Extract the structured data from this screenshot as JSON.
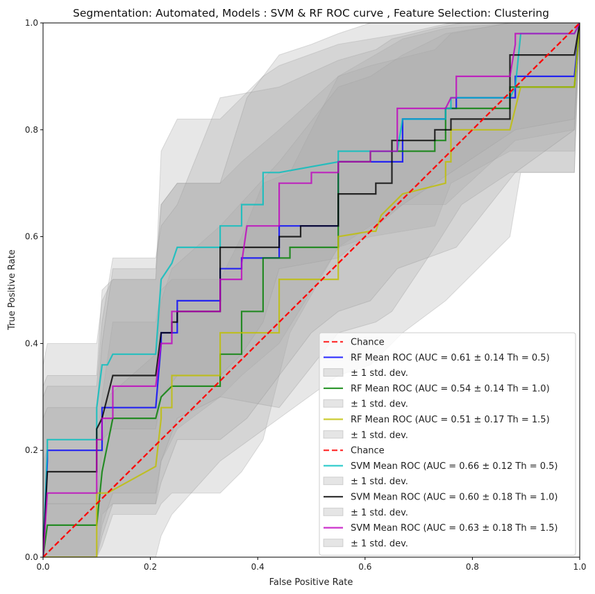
{
  "chart_data": {
    "type": "line",
    "title": "Segmentation: Automated, Models : SVM & RF ROC curve , Feature Selection: Clustering",
    "xlabel": "False Positive Rate",
    "ylabel": "True Positive Rate",
    "xlim": [
      0,
      1
    ],
    "ylim": [
      0,
      1
    ],
    "xticks": [
      "0.0",
      "0.2",
      "0.4",
      "0.6",
      "0.8",
      "1.0"
    ],
    "yticks": [
      "0.0",
      "0.2",
      "0.4",
      "0.6",
      "0.8",
      "1.0"
    ],
    "grid": false,
    "legend_position": "bottom-right",
    "chance_color": "#ff0000",
    "band_color": "#a9a9a9",
    "series": [
      {
        "name": "RF Mean ROC (AUC = 0.61 ± 0.14 Th = 0.5)",
        "color": "#0000ff",
        "x": [
          0,
          0.008,
          0.008,
          0.1,
          0.11,
          0.11,
          0.21,
          0.22,
          0.22,
          0.25,
          0.25,
          0.33,
          0.33,
          0.37,
          0.37,
          0.44,
          0.44,
          0.55,
          0.55,
          0.56,
          0.56,
          0.67,
          0.67,
          0.75,
          0.75,
          0.77,
          0.77,
          0.88,
          0.88,
          0.89,
          0.89,
          0.99,
          1.0
        ],
        "y": [
          0,
          0.18,
          0.2,
          0.2,
          0.2,
          0.28,
          0.28,
          0.4,
          0.42,
          0.42,
          0.48,
          0.48,
          0.54,
          0.54,
          0.56,
          0.56,
          0.62,
          0.62,
          0.74,
          0.74,
          0.74,
          0.74,
          0.82,
          0.82,
          0.84,
          0.84,
          0.86,
          0.86,
          0.9,
          0.9,
          0.9,
          0.9,
          1.0
        ],
        "band_upper": [
          0.4,
          0.5,
          0.5,
          0.55,
          0.62,
          0.68,
          0.76,
          0.8,
          0.86,
          0.9,
          0.96,
          0.98,
          1.0
        ],
        "band_lower": [
          0.0,
          0.0,
          0.0,
          0.05,
          0.1,
          0.22,
          0.3,
          0.35,
          0.45,
          0.55,
          0.65,
          0.75,
          0.8
        ]
      },
      {
        "name": "RF Mean ROC (AUC = 0.54 ± 0.14 Th = 1.0)",
        "color": "#008000",
        "x": [
          0,
          0.008,
          0.008,
          0.1,
          0.11,
          0.11,
          0.13,
          0.13,
          0.21,
          0.22,
          0.22,
          0.24,
          0.24,
          0.33,
          0.33,
          0.37,
          0.37,
          0.41,
          0.41,
          0.46,
          0.46,
          0.5,
          0.5,
          0.55,
          0.55,
          0.61,
          0.61,
          0.73,
          0.73,
          0.75,
          0.75,
          0.76,
          0.76,
          0.87,
          0.87,
          0.89,
          0.89,
          0.99,
          1.0
        ],
        "y": [
          0,
          0.06,
          0.06,
          0.06,
          0.16,
          0.16,
          0.26,
          0.26,
          0.26,
          0.3,
          0.3,
          0.32,
          0.32,
          0.32,
          0.38,
          0.38,
          0.46,
          0.46,
          0.56,
          0.56,
          0.58,
          0.58,
          0.58,
          0.58,
          0.74,
          0.74,
          0.76,
          0.76,
          0.78,
          0.78,
          0.84,
          0.84,
          0.84,
          0.84,
          0.88,
          0.88,
          0.88,
          0.88,
          1.0
        ]
      },
      {
        "name": "RF Mean ROC (AUC = 0.51 ± 0.17 Th = 1.5)",
        "color": "#bfbf00",
        "x": [
          0,
          0.008,
          0.008,
          0.1,
          0.1,
          0.12,
          0.21,
          0.22,
          0.22,
          0.24,
          0.24,
          0.33,
          0.33,
          0.44,
          0.44,
          0.55,
          0.55,
          0.61,
          0.62,
          0.63,
          0.63,
          0.66,
          0.67,
          0.75,
          0.75,
          0.76,
          0.76,
          0.87,
          0.88,
          0.89,
          0.89,
          0.99,
          1.0
        ],
        "y": [
          0,
          0.0,
          0.0,
          0.0,
          0.12,
          0.12,
          0.17,
          0.26,
          0.28,
          0.28,
          0.34,
          0.34,
          0.42,
          0.42,
          0.52,
          0.52,
          0.6,
          0.61,
          0.61,
          0.64,
          0.64,
          0.67,
          0.68,
          0.7,
          0.74,
          0.74,
          0.8,
          0.8,
          0.84,
          0.88,
          0.88,
          0.88,
          1.0
        ]
      },
      {
        "name": "SVM Mean ROC (AUC = 0.66 ± 0.12 Th = 0.5)",
        "color": "#00bfbf",
        "x": [
          0,
          0.008,
          0.008,
          0.1,
          0.1,
          0.11,
          0.12,
          0.13,
          0.13,
          0.21,
          0.22,
          0.22,
          0.24,
          0.25,
          0.25,
          0.33,
          0.33,
          0.37,
          0.37,
          0.41,
          0.41,
          0.44,
          0.44,
          0.55,
          0.55,
          0.57,
          0.57,
          0.66,
          0.67,
          0.75,
          0.75,
          0.76,
          0.76,
          0.87,
          0.88,
          0.89,
          0.89,
          0.99,
          1.0
        ],
        "y": [
          0,
          0.2,
          0.22,
          0.22,
          0.28,
          0.36,
          0.36,
          0.38,
          0.38,
          0.38,
          0.52,
          0.52,
          0.55,
          0.58,
          0.58,
          0.58,
          0.62,
          0.62,
          0.66,
          0.66,
          0.72,
          0.72,
          0.72,
          0.74,
          0.76,
          0.76,
          0.76,
          0.76,
          0.82,
          0.82,
          0.84,
          0.84,
          0.86,
          0.86,
          0.88,
          0.98,
          0.98,
          0.98,
          1.0
        ]
      },
      {
        "name": "SVM Mean ROC (AUC = 0.60 ± 0.18 Th = 1.0)",
        "color": "#000000",
        "x": [
          0,
          0.008,
          0.008,
          0.1,
          0.1,
          0.11,
          0.11,
          0.13,
          0.13,
          0.21,
          0.22,
          0.22,
          0.24,
          0.24,
          0.25,
          0.25,
          0.33,
          0.33,
          0.44,
          0.44,
          0.44,
          0.48,
          0.48,
          0.55,
          0.55,
          0.62,
          0.62,
          0.65,
          0.65,
          0.73,
          0.73,
          0.76,
          0.76,
          0.78,
          0.78,
          0.87,
          0.87,
          0.89,
          0.89,
          0.99,
          1.0
        ],
        "y": [
          0,
          0.16,
          0.16,
          0.16,
          0.24,
          0.26,
          0.26,
          0.34,
          0.34,
          0.34,
          0.42,
          0.42,
          0.42,
          0.44,
          0.44,
          0.46,
          0.46,
          0.58,
          0.58,
          0.58,
          0.6,
          0.6,
          0.62,
          0.62,
          0.68,
          0.68,
          0.7,
          0.7,
          0.78,
          0.78,
          0.8,
          0.8,
          0.82,
          0.82,
          0.82,
          0.82,
          0.94,
          0.94,
          0.94,
          0.94,
          1.0
        ]
      },
      {
        "name": "SVM Mean ROC (AUC = 0.63 ± 0.18 Th = 1.5)",
        "color": "#bf00bf",
        "x": [
          0,
          0.008,
          0.008,
          0.1,
          0.1,
          0.11,
          0.11,
          0.13,
          0.13,
          0.21,
          0.22,
          0.22,
          0.24,
          0.24,
          0.25,
          0.25,
          0.33,
          0.33,
          0.37,
          0.37,
          0.38,
          0.38,
          0.44,
          0.44,
          0.5,
          0.5,
          0.55,
          0.55,
          0.61,
          0.61,
          0.66,
          0.66,
          0.75,
          0.76,
          0.77,
          0.77,
          0.87,
          0.88,
          0.88,
          0.99,
          1.0
        ],
        "y": [
          0,
          0.12,
          0.12,
          0.12,
          0.22,
          0.22,
          0.26,
          0.26,
          0.32,
          0.32,
          0.4,
          0.4,
          0.4,
          0.46,
          0.46,
          0.46,
          0.46,
          0.52,
          0.52,
          0.55,
          0.62,
          0.62,
          0.62,
          0.7,
          0.7,
          0.72,
          0.72,
          0.74,
          0.74,
          0.76,
          0.76,
          0.84,
          0.84,
          0.86,
          0.86,
          0.9,
          0.9,
          0.96,
          0.98,
          0.98,
          1.0
        ]
      }
    ],
    "bands": [
      {
        "x": [
          0,
          0.008,
          0.1,
          0.11,
          0.13,
          0.21,
          0.22,
          0.25,
          0.33,
          0.37,
          0.44,
          0.55,
          0.67,
          0.75,
          0.88,
          0.99,
          1.0
        ],
        "upper": [
          0.36,
          0.4,
          0.4,
          0.48,
          0.52,
          0.52,
          0.66,
          0.7,
          0.7,
          0.74,
          0.8,
          0.9,
          0.97,
          0.99,
          1.0,
          1.0,
          1.0
        ],
        "lower": [
          0.0,
          0.0,
          0.0,
          0.08,
          0.1,
          0.1,
          0.18,
          0.24,
          0.3,
          0.34,
          0.4,
          0.58,
          0.66,
          0.66,
          0.78,
          0.8,
          1.0
        ]
      },
      {
        "x": [
          0,
          0.008,
          0.1,
          0.11,
          0.13,
          0.21,
          0.22,
          0.24,
          0.33,
          0.37,
          0.41,
          0.46,
          0.55,
          0.61,
          0.73,
          0.76,
          0.87,
          0.99,
          1.0
        ],
        "upper": [
          0.18,
          0.2,
          0.2,
          0.3,
          0.44,
          0.44,
          0.5,
          0.52,
          0.52,
          0.6,
          0.7,
          0.72,
          0.9,
          0.92,
          0.95,
          0.98,
          1.0,
          1.0,
          1.0
        ],
        "lower": [
          0.0,
          0.0,
          0.0,
          0.02,
          0.08,
          0.08,
          0.1,
          0.12,
          0.12,
          0.16,
          0.22,
          0.42,
          0.58,
          0.6,
          0.62,
          0.7,
          0.76,
          0.76,
          1.0
        ]
      },
      {
        "x": [
          0,
          0.008,
          0.1,
          0.12,
          0.21,
          0.22,
          0.24,
          0.33,
          0.44,
          0.55,
          0.61,
          0.67,
          0.75,
          0.87,
          0.89,
          0.99,
          1.0
        ],
        "upper": [
          0.08,
          0.1,
          0.1,
          0.3,
          0.38,
          0.48,
          0.54,
          0.62,
          0.74,
          0.88,
          0.9,
          0.94,
          0.98,
          1.0,
          1.0,
          1.0,
          1.0
        ],
        "lower": [
          0.0,
          0.0,
          0.0,
          0.0,
          0.0,
          0.04,
          0.08,
          0.18,
          0.26,
          0.34,
          0.36,
          0.42,
          0.48,
          0.6,
          0.72,
          0.72,
          1.0
        ]
      },
      {
        "x": [
          0,
          0.008,
          0.1,
          0.11,
          0.13,
          0.21,
          0.22,
          0.25,
          0.33,
          0.37,
          0.41,
          0.44,
          0.55,
          0.67,
          0.76,
          0.88,
          0.99,
          1.0
        ],
        "upper": [
          0.32,
          0.34,
          0.34,
          0.5,
          0.52,
          0.52,
          0.76,
          0.82,
          0.82,
          0.86,
          0.9,
          0.92,
          0.96,
          0.98,
          1.0,
          1.0,
          1.0,
          1.0
        ],
        "lower": [
          0.0,
          0.1,
          0.1,
          0.22,
          0.24,
          0.24,
          0.3,
          0.34,
          0.34,
          0.38,
          0.44,
          0.54,
          0.56,
          0.66,
          0.72,
          0.8,
          0.82,
          1.0
        ]
      },
      {
        "x": [
          0,
          0.008,
          0.1,
          0.11,
          0.13,
          0.21,
          0.22,
          0.25,
          0.33,
          0.44,
          0.55,
          0.62,
          0.65,
          0.73,
          0.78,
          0.87,
          0.99,
          1.0
        ],
        "upper": [
          0.3,
          0.32,
          0.32,
          0.44,
          0.56,
          0.56,
          0.62,
          0.66,
          0.86,
          0.88,
          0.93,
          0.95,
          0.97,
          0.99,
          1.0,
          1.0,
          1.0,
          1.0
        ],
        "lower": [
          0.0,
          0.0,
          0.0,
          0.06,
          0.12,
          0.12,
          0.18,
          0.26,
          0.3,
          0.28,
          0.42,
          0.44,
          0.46,
          0.58,
          0.66,
          0.72,
          0.72,
          1.0
        ]
      },
      {
        "x": [
          0,
          0.008,
          0.1,
          0.11,
          0.13,
          0.21,
          0.22,
          0.25,
          0.33,
          0.38,
          0.44,
          0.5,
          0.55,
          0.61,
          0.66,
          0.77,
          0.88,
          0.99,
          1.0
        ],
        "upper": [
          0.26,
          0.28,
          0.28,
          0.4,
          0.54,
          0.54,
          0.66,
          0.7,
          0.7,
          0.86,
          0.94,
          0.96,
          0.98,
          1.0,
          1.0,
          1.0,
          1.0,
          1.0,
          1.0
        ],
        "lower": [
          0.0,
          0.0,
          0.0,
          0.04,
          0.1,
          0.1,
          0.14,
          0.22,
          0.22,
          0.26,
          0.34,
          0.42,
          0.46,
          0.48,
          0.54,
          0.58,
          0.72,
          0.8,
          1.0
        ]
      }
    ],
    "legend": [
      {
        "label": "Chance",
        "kind": "dashed",
        "color": "#ff0000"
      },
      {
        "label": "RF Mean ROC (AUC = 0.61 ± 0.14 Th = 0.5)",
        "kind": "line",
        "color": "#0000ff"
      },
      {
        "label": "± 1 std. dev.",
        "kind": "patch",
        "color": "#a9a9a9"
      },
      {
        "label": "RF Mean ROC (AUC = 0.54 ± 0.14 Th = 1.0)",
        "kind": "line",
        "color": "#008000"
      },
      {
        "label": "± 1 std. dev.",
        "kind": "patch",
        "color": "#a9a9a9"
      },
      {
        "label": "RF Mean ROC (AUC = 0.51 ± 0.17 Th = 1.5)",
        "kind": "line",
        "color": "#bfbf00"
      },
      {
        "label": "± 1 std. dev.",
        "kind": "patch",
        "color": "#a9a9a9"
      },
      {
        "label": "Chance",
        "kind": "dashed",
        "color": "#ff0000"
      },
      {
        "label": "SVM Mean ROC (AUC = 0.66 ± 0.12 Th = 0.5)",
        "kind": "line",
        "color": "#00bfbf"
      },
      {
        "label": "± 1 std. dev.",
        "kind": "patch",
        "color": "#a9a9a9"
      },
      {
        "label": "SVM Mean ROC (AUC = 0.60 ± 0.18 Th = 1.0)",
        "kind": "line",
        "color": "#000000"
      },
      {
        "label": "± 1 std. dev.",
        "kind": "patch",
        "color": "#a9a9a9"
      },
      {
        "label": "SVM Mean ROC (AUC = 0.63 ± 0.18 Th = 1.5)",
        "kind": "line",
        "color": "#bf00bf"
      },
      {
        "label": "± 1 std. dev.",
        "kind": "patch",
        "color": "#a9a9a9"
      }
    ]
  }
}
